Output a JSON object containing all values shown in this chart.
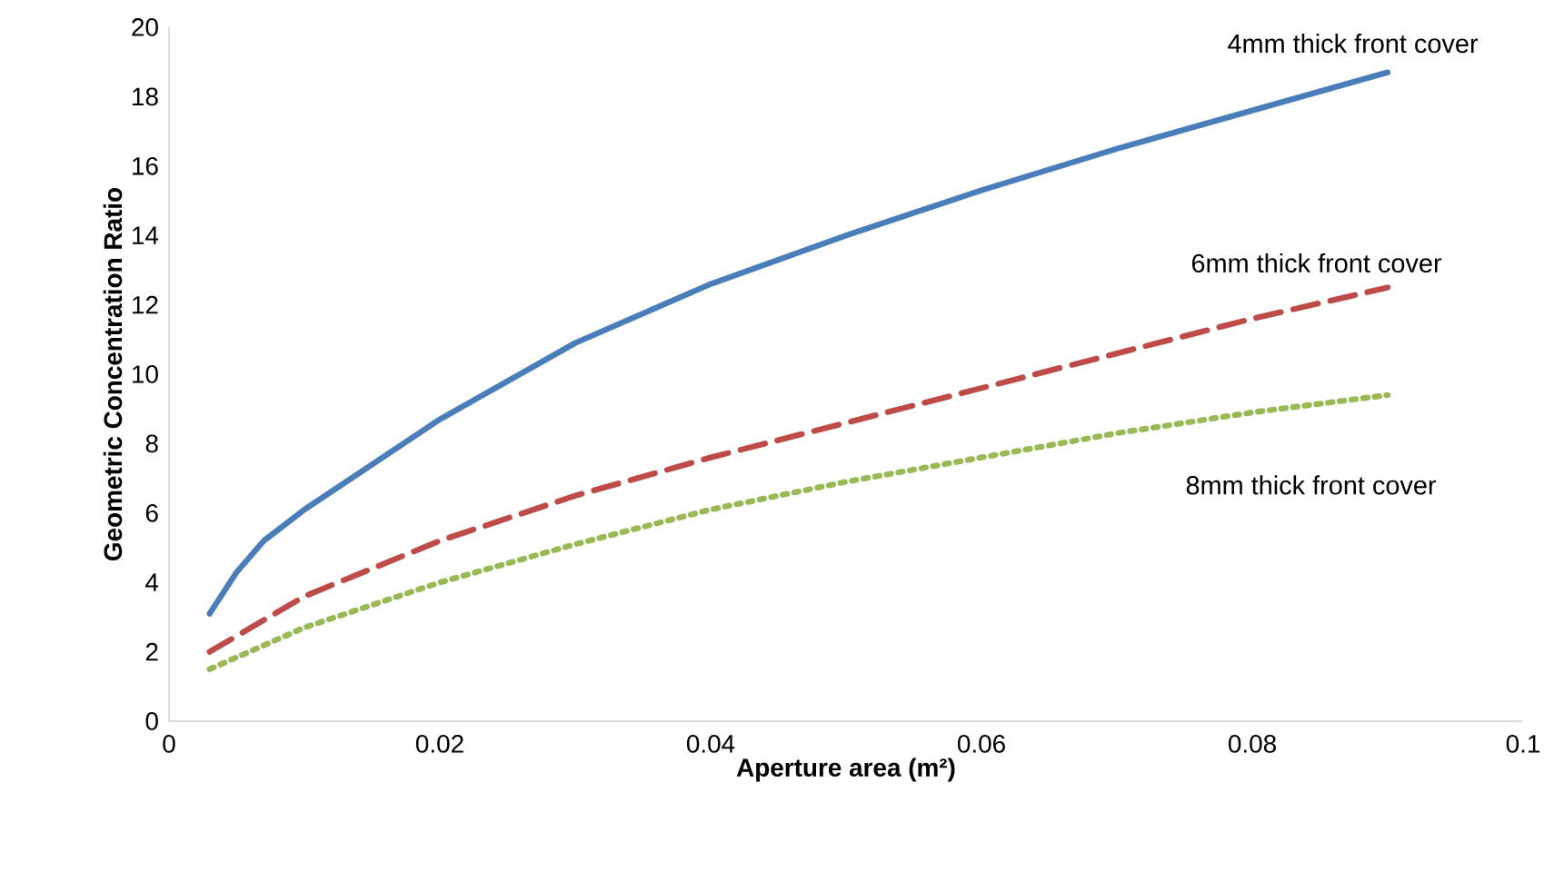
{
  "chart_data": {
    "type": "line",
    "xlabel": "Aperture area (m²)",
    "ylabel": "Geometric Concentration Ratio",
    "xlim": [
      0,
      0.1
    ],
    "ylim": [
      0,
      20
    ],
    "xticks": [
      0,
      0.02,
      0.04,
      0.06,
      0.08,
      0.1
    ],
    "yticks": [
      0,
      2,
      4,
      6,
      8,
      10,
      12,
      14,
      16,
      18,
      20
    ],
    "grid": false,
    "legend": false,
    "marker": "none",
    "series": [
      {
        "name": "4mm thick front cover",
        "color": "#4a7ebb",
        "line_style": "solid",
        "x": [
          0.003,
          0.005,
          0.007,
          0.01,
          0.02,
          0.03,
          0.04,
          0.05,
          0.06,
          0.07,
          0.08,
          0.09
        ],
        "values": [
          3.1,
          4.3,
          5.2,
          6.1,
          8.7,
          10.9,
          12.6,
          14.0,
          15.3,
          16.5,
          17.6,
          18.7
        ]
      },
      {
        "name": "6mm thick front cover",
        "color": "#be4b48",
        "line_style": "dashed",
        "x": [
          0.003,
          0.01,
          0.02,
          0.03,
          0.04,
          0.05,
          0.06,
          0.07,
          0.08,
          0.09
        ],
        "values": [
          2.0,
          3.6,
          5.2,
          6.5,
          7.6,
          8.6,
          9.6,
          10.6,
          11.6,
          12.5
        ]
      },
      {
        "name": "8mm thick front cover",
        "color": "#98b954",
        "line_style": "dotted",
        "x": [
          0.003,
          0.01,
          0.02,
          0.03,
          0.04,
          0.05,
          0.06,
          0.07,
          0.08,
          0.09
        ],
        "values": [
          1.5,
          2.7,
          4.0,
          5.1,
          6.1,
          6.9,
          7.6,
          8.3,
          8.9,
          9.4
        ]
      }
    ]
  }
}
